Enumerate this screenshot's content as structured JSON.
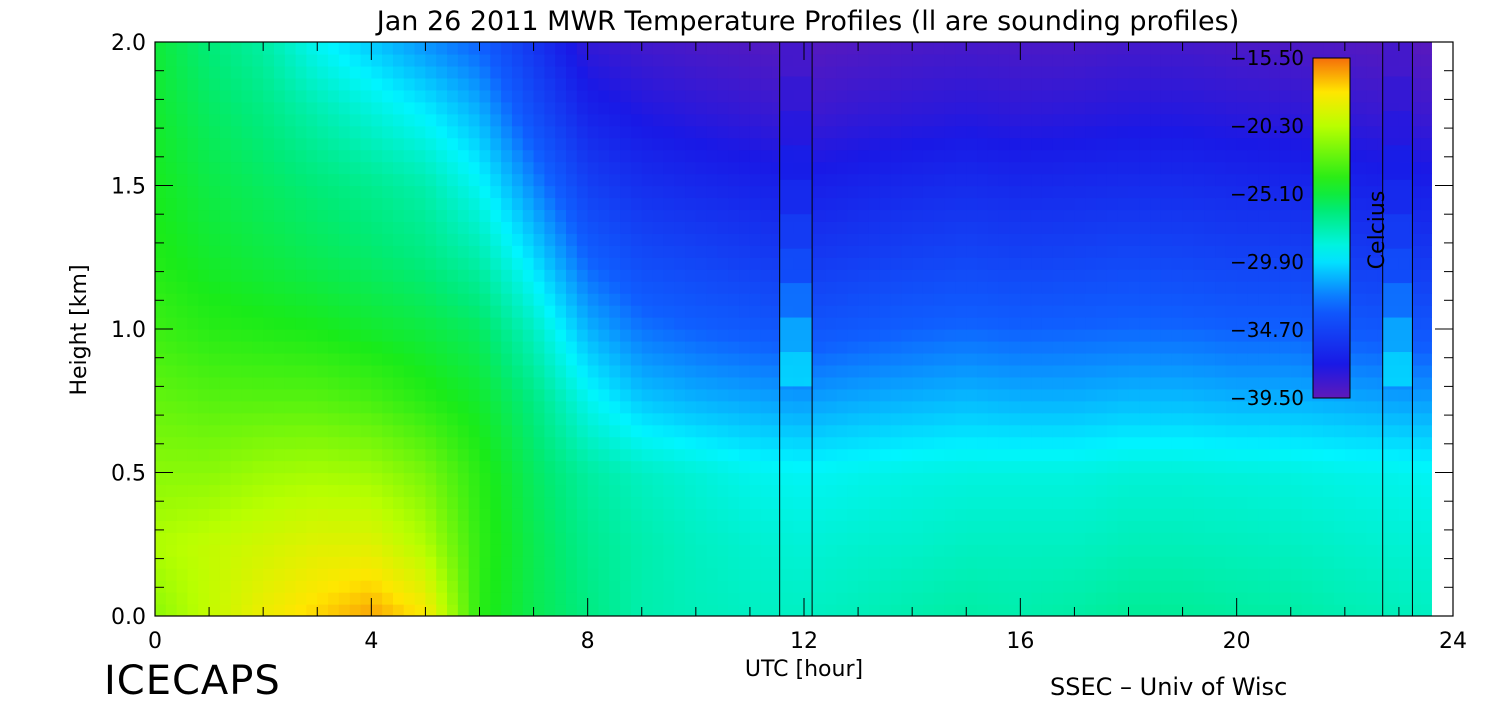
{
  "chart_data": {
    "type": "heatmap",
    "title": "Jan 26 2011 MWR Temperature Profiles (ll are sounding profiles)",
    "xlabel": "UTC [hour]",
    "ylabel": "Height [km]",
    "xlim": [
      0,
      24
    ],
    "ylim": [
      0,
      2.0
    ],
    "x_ticks": [
      0,
      4,
      8,
      12,
      16,
      20,
      24
    ],
    "x_tick_labels": [
      "0",
      "4",
      "8",
      "12",
      "16",
      "20",
      "24"
    ],
    "y_ticks": [
      0.0,
      0.5,
      1.0,
      1.5,
      2.0
    ],
    "y_tick_labels": [
      "0.0",
      "0.5",
      "1.0",
      "1.5",
      "2.0"
    ],
    "colorbar": {
      "label": "Celcius",
      "min": -39.5,
      "max": -15.5,
      "ticks": [
        -15.5,
        -20.3,
        -25.1,
        -29.9,
        -34.7,
        -39.5
      ],
      "tick_labels": [
        "−15.50",
        "−20.30",
        "−25.10",
        "−29.90",
        "−34.70",
        "−39.50"
      ],
      "placement": "top-right inside plot"
    },
    "sounding_profiles": [
      {
        "start": 11.55,
        "end": 12.15
      },
      {
        "start": 22.7,
        "end": 23.25
      }
    ],
    "x_hours": [
      0,
      1,
      2,
      3,
      4,
      5,
      6,
      7,
      8,
      9,
      10,
      11,
      12,
      13,
      14,
      15,
      16,
      17,
      18,
      19,
      20,
      21,
      22,
      23,
      23.6
    ],
    "heights_km": [
      0.0,
      0.25,
      0.5,
      0.75,
      1.0,
      1.25,
      1.5,
      1.75,
      2.0
    ],
    "temperature_c": [
      [
        -21.5,
        -20.0,
        -18.5,
        -17.5,
        -16.5,
        -18.0,
        -24.0,
        -25.5,
        -26.5,
        -27.5,
        -27.8,
        -28.0,
        -28.0,
        -27.8,
        -27.5,
        -27.3,
        -27.5,
        -27.3,
        -27.0,
        -27.0,
        -27.2,
        -27.3,
        -27.6,
        -27.8,
        -28.0
      ],
      [
        -20.5,
        -20.0,
        -19.5,
        -19.0,
        -19.0,
        -20.5,
        -23.8,
        -25.5,
        -26.8,
        -27.5,
        -28.0,
        -28.3,
        -28.5,
        -28.3,
        -28.2,
        -28.0,
        -28.0,
        -28.0,
        -27.8,
        -27.8,
        -27.9,
        -28.0,
        -28.2,
        -28.4,
        -28.5
      ],
      [
        -21.5,
        -21.5,
        -21.0,
        -20.8,
        -21.0,
        -22.0,
        -24.0,
        -25.8,
        -27.2,
        -28.0,
        -28.5,
        -29.0,
        -29.2,
        -29.0,
        -28.8,
        -28.7,
        -28.7,
        -28.7,
        -28.5,
        -28.5,
        -28.6,
        -28.7,
        -28.9,
        -29.0,
        -29.2
      ],
      [
        -22.5,
        -22.8,
        -22.8,
        -22.8,
        -23.2,
        -24.0,
        -24.8,
        -26.5,
        -29.0,
        -30.5,
        -31.0,
        -31.3,
        -31.5,
        -31.2,
        -31.0,
        -30.8,
        -31.0,
        -31.0,
        -30.8,
        -30.8,
        -31.0,
        -31.0,
        -31.2,
        -31.4,
        -31.5
      ],
      [
        -23.5,
        -24.0,
        -24.2,
        -24.4,
        -24.8,
        -25.2,
        -25.8,
        -28.0,
        -31.0,
        -32.5,
        -33.0,
        -33.3,
        -33.6,
        -33.3,
        -33.0,
        -32.8,
        -33.0,
        -32.9,
        -32.8,
        -32.8,
        -33.0,
        -33.0,
        -33.3,
        -33.5,
        -33.6
      ],
      [
        -24.2,
        -24.8,
        -25.2,
        -25.6,
        -26.0,
        -26.5,
        -27.5,
        -30.0,
        -33.0,
        -34.2,
        -34.6,
        -35.0,
        -35.3,
        -35.0,
        -34.7,
        -34.5,
        -34.7,
        -34.6,
        -34.4,
        -34.5,
        -34.7,
        -34.7,
        -35.0,
        -35.2,
        -35.3
      ],
      [
        -24.5,
        -25.3,
        -25.8,
        -26.3,
        -26.8,
        -27.5,
        -29.2,
        -32.0,
        -34.8,
        -35.8,
        -36.2,
        -36.5,
        -36.8,
        -36.5,
        -36.2,
        -36.0,
        -36.2,
        -36.1,
        -36.0,
        -36.0,
        -36.2,
        -36.3,
        -36.5,
        -36.7,
        -36.8
      ],
      [
        -24.8,
        -25.8,
        -26.5,
        -27.5,
        -28.5,
        -29.5,
        -31.0,
        -34.0,
        -36.5,
        -37.3,
        -37.7,
        -38.0,
        -38.3,
        -38.0,
        -37.8,
        -37.6,
        -37.8,
        -37.7,
        -37.5,
        -37.5,
        -37.7,
        -37.8,
        -38.0,
        -38.2,
        -38.3
      ],
      [
        -25.0,
        -26.3,
        -27.3,
        -29.2,
        -30.5,
        -31.8,
        -33.0,
        -35.5,
        -38.0,
        -38.5,
        -38.8,
        -39.0,
        -39.2,
        -39.0,
        -38.8,
        -38.7,
        -38.8,
        -38.8,
        -38.6,
        -38.6,
        -38.8,
        -38.9,
        -39.0,
        -39.2,
        -39.3
      ]
    ]
  },
  "footer": {
    "brand": "ICECAPS",
    "credit": "SSEC – Univ of Wisc"
  }
}
